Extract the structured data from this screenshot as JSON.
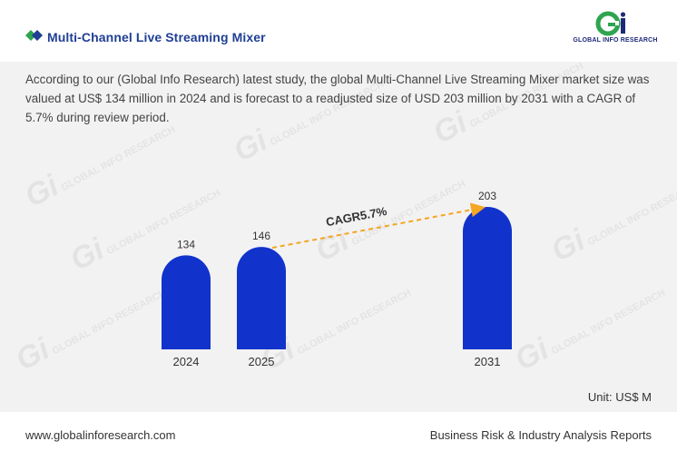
{
  "header": {
    "title": "Multi-Channel Live Streaming Mixer",
    "logo_text": "GLOBAL INFO RESEARCH"
  },
  "description": "According to our (Global Info Research) latest study, the global Multi-Channel Live Streaming Mixer market size was valued at US$ 134 million in 2024 and is forecast to a readjusted size of USD 203 million by 2031 with a CAGR of 5.7% during review period.",
  "colors": {
    "bar": "#1133cc",
    "title": "#1f3f95",
    "arrow": "#f5a623",
    "logo_green": "#2ea44f",
    "logo_blue": "#1e2a78"
  },
  "chart_data": {
    "type": "bar",
    "categories": [
      "2024",
      "2025",
      "2031"
    ],
    "values": [
      134,
      146,
      203
    ],
    "value_labels": [
      "134",
      "146",
      "203"
    ],
    "annotation": {
      "text": "CAGR5.7%",
      "from": "2025",
      "to": "2031"
    },
    "unit": "Unit: US$ M"
  },
  "footer": {
    "website": "www.globalinforesearch.com",
    "tagline": "Business Risk & Industry Analysis Reports"
  }
}
